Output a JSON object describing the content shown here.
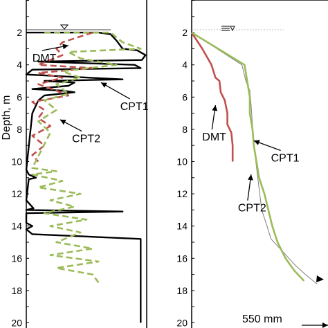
{
  "chart_data": [
    {
      "type": "line",
      "panel": "left",
      "ylabel": "Depth, m",
      "ylim": [
        20,
        0
      ],
      "yticks": [
        2,
        4,
        6,
        8,
        10,
        12,
        14,
        16,
        18,
        20
      ],
      "series": [
        {
          "name": "CPT1",
          "color": "#000000",
          "style": "solid",
          "points": [
            [
              0.0,
              2.0
            ],
            [
              0.6,
              2.0
            ],
            [
              0.7,
              2.1
            ],
            [
              0.75,
              2.5
            ],
            [
              0.8,
              3.0
            ],
            [
              0.92,
              3.1
            ],
            [
              0.99,
              3.4
            ],
            [
              0.96,
              3.7
            ],
            [
              0.1,
              3.8
            ],
            [
              0.9,
              4.0
            ],
            [
              0.95,
              4.2
            ],
            [
              0.05,
              4.3
            ],
            [
              0.0,
              4.6
            ],
            [
              0.8,
              4.9
            ],
            [
              0.15,
              5.0
            ],
            [
              0.4,
              5.1
            ],
            [
              0.35,
              5.3
            ],
            [
              0.05,
              5.5
            ],
            [
              0.3,
              5.6
            ],
            [
              0.4,
              5.7
            ],
            [
              0.15,
              5.9
            ],
            [
              0.1,
              6.2
            ],
            [
              0.05,
              7.0
            ],
            [
              0.0,
              10.5
            ],
            [
              0.02,
              10.8
            ],
            [
              0.08,
              11.0
            ],
            [
              0.02,
              11.1
            ],
            [
              0.0,
              12.4
            ],
            [
              0.06,
              12.9
            ],
            [
              0.0,
              13.0
            ],
            [
              0.8,
              13.1
            ],
            [
              0.0,
              13.2
            ],
            [
              0.0,
              13.8
            ],
            [
              0.05,
              14.0
            ],
            [
              0.0,
              14.2
            ],
            [
              0.05,
              14.5
            ],
            [
              0.95,
              14.8
            ],
            [
              0.95,
              20.0
            ]
          ]
        },
        {
          "name": "DMT",
          "color": "#c0504d",
          "style": "dashed",
          "points": [
            [
              0.55,
              2.0
            ],
            [
              0.3,
              2.6
            ],
            [
              0.25,
              3.0
            ],
            [
              0.3,
              3.4
            ],
            [
              0.1,
              4.0
            ],
            [
              0.55,
              4.2
            ],
            [
              0.1,
              4.5
            ],
            [
              0.3,
              4.8
            ],
            [
              0.1,
              5.2
            ],
            [
              0.25,
              5.6
            ],
            [
              0.35,
              5.9
            ],
            [
              0.05,
              6.3
            ],
            [
              0.15,
              6.8
            ],
            [
              0.1,
              7.3
            ],
            [
              0.2,
              7.8
            ],
            [
              0.05,
              8.4
            ],
            [
              0.15,
              9.0
            ],
            [
              0.05,
              9.6
            ],
            [
              0.1,
              10.0
            ]
          ]
        },
        {
          "name": "CPT2",
          "color": "#9bbb59",
          "style": "dashed",
          "points": [
            [
              0.15,
              2.0
            ],
            [
              0.7,
              2.0
            ],
            [
              0.8,
              2.6
            ],
            [
              0.95,
              3.0
            ],
            [
              0.35,
              3.2
            ],
            [
              0.45,
              3.6
            ],
            [
              0.75,
              4.0
            ],
            [
              0.3,
              4.4
            ],
            [
              0.45,
              4.8
            ],
            [
              0.25,
              5.2
            ],
            [
              0.35,
              5.8
            ],
            [
              0.15,
              6.2
            ],
            [
              0.25,
              6.8
            ],
            [
              0.1,
              7.5
            ],
            [
              0.2,
              8.2
            ],
            [
              0.05,
              10.4
            ],
            [
              0.25,
              10.6
            ],
            [
              0.05,
              10.8
            ],
            [
              0.3,
              11.2
            ],
            [
              0.1,
              11.6
            ],
            [
              0.45,
              12.0
            ],
            [
              0.2,
              12.4
            ],
            [
              0.4,
              12.8
            ],
            [
              0.15,
              13.2
            ],
            [
              0.5,
              13.6
            ],
            [
              0.2,
              14.0
            ],
            [
              0.45,
              14.4
            ],
            [
              0.25,
              15.0
            ],
            [
              0.55,
              15.4
            ],
            [
              0.2,
              15.8
            ],
            [
              0.6,
              16.2
            ],
            [
              0.25,
              16.6
            ],
            [
              0.55,
              17.0
            ],
            [
              0.6,
              17.5
            ]
          ]
        }
      ],
      "annotations": [
        {
          "text": "DMT",
          "x": 0.05,
          "y": 3.8,
          "arrow_to": [
            0.35,
            2.8
          ]
        },
        {
          "text": "CPT1",
          "x": 0.78,
          "y": 6.8,
          "arrow_to": [
            0.62,
            5.1
          ]
        },
        {
          "text": "CPT2",
          "x": 0.38,
          "y": 8.8,
          "arrow_to": [
            0.28,
            7.4
          ]
        }
      ]
    },
    {
      "type": "line",
      "panel": "right",
      "ylim": [
        20,
        0
      ],
      "yticks": [
        2,
        4,
        6,
        8,
        10,
        12,
        14,
        16,
        18,
        20
      ],
      "scale_label": "550 mm",
      "series": [
        {
          "name": "DMT",
          "color": "#c0504d",
          "style": "solid",
          "points": [
            [
              0.0,
              2.0
            ],
            [
              0.08,
              3.0
            ],
            [
              0.15,
              4.0
            ],
            [
              0.18,
              4.8
            ],
            [
              0.21,
              5.0
            ],
            [
              0.22,
              5.7
            ],
            [
              0.25,
              6.2
            ],
            [
              0.27,
              7.0
            ],
            [
              0.27,
              7.7
            ],
            [
              0.3,
              8.2
            ],
            [
              0.31,
              9.0
            ],
            [
              0.31,
              10.0
            ]
          ]
        },
        {
          "name": "CPT1",
          "color": "#7f7f7f",
          "style": "solid",
          "points": [
            [
              0.0,
              2.0
            ],
            [
              0.38,
              4.0
            ],
            [
              0.41,
              5.0
            ],
            [
              0.44,
              5.6
            ],
            [
              0.45,
              6.5
            ],
            [
              0.47,
              9.0
            ],
            [
              0.5,
              11.0
            ],
            [
              0.53,
              13.0
            ],
            [
              0.57,
              14.0
            ],
            [
              0.6,
              14.8
            ],
            [
              0.68,
              15.5
            ],
            [
              0.78,
              16.4
            ],
            [
              0.86,
              17.0
            ],
            [
              0.95,
              17.6
            ]
          ]
        },
        {
          "name": "CPT2",
          "color": "#9bbb59",
          "style": "solid",
          "points": [
            [
              0.0,
              2.0
            ],
            [
              0.4,
              4.0
            ],
            [
              0.42,
              5.0
            ],
            [
              0.44,
              6.0
            ],
            [
              0.44,
              7.0
            ],
            [
              0.46,
              8.0
            ],
            [
              0.47,
              9.0
            ],
            [
              0.49,
              10.0
            ],
            [
              0.51,
              11.0
            ],
            [
              0.55,
              12.0
            ],
            [
              0.58,
              13.0
            ],
            [
              0.61,
              14.0
            ],
            [
              0.65,
              15.0
            ],
            [
              0.71,
              16.0
            ],
            [
              0.78,
              16.8
            ],
            [
              0.85,
              17.4
            ]
          ]
        }
      ],
      "annotations": [
        {
          "text": "DMT",
          "x": 0.08,
          "y": 8.7,
          "arrow_to": [
            0.18,
            6.5
          ]
        },
        {
          "text": "CPT1",
          "x": 0.6,
          "y": 10.0,
          "arrow_to": [
            0.47,
            8.7
          ]
        },
        {
          "text": "CPT2",
          "x": 0.35,
          "y": 13.1,
          "arrow_to": [
            0.45,
            10.8
          ]
        }
      ]
    }
  ]
}
